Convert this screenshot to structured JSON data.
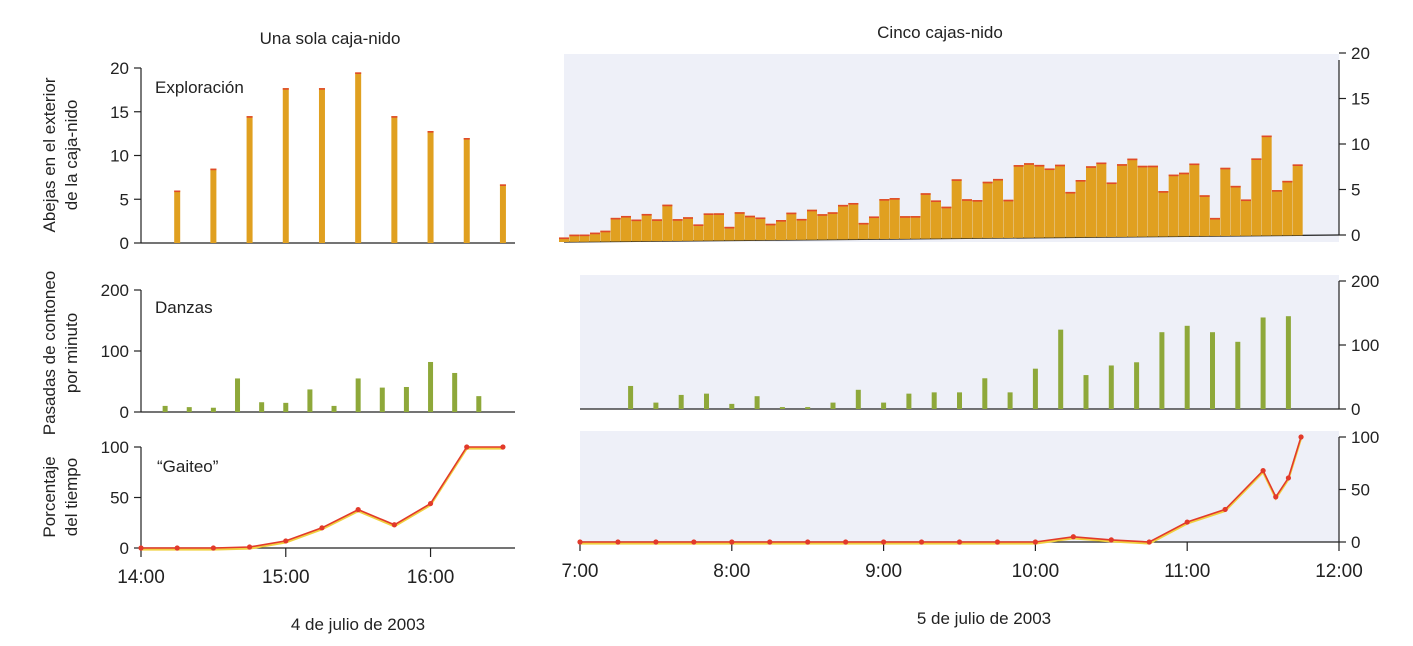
{
  "figure": {
    "left_title": "Una sola caja-nido",
    "right_title": "Cinco cajas-nido",
    "left_date": "4 de julio de 2003",
    "right_date": "5 de julio de 2003"
  },
  "colors": {
    "bars_top": "#e0a020",
    "bars_top_tip": "#e04a2a",
    "bars_mid": "#8ea83a",
    "line": "#e23a2a",
    "line_under": "#f0d040",
    "panel_bg": "#eef0f8",
    "axis": "#222222"
  },
  "chart_data": [
    {
      "id": "left_exploracion",
      "type": "bar",
      "title": "Exploración",
      "ylabel": [
        "Abejas en el exterior",
        "de la caja-nido"
      ],
      "xlabel": "",
      "xlim": [
        "14:00",
        "16:35"
      ],
      "ylim": [
        0,
        20
      ],
      "yticks": [
        "0",
        "5",
        "10",
        "15",
        "20"
      ],
      "x": [
        "14:15",
        "14:30",
        "14:45",
        "15:00",
        "15:15",
        "15:30",
        "15:45",
        "16:00",
        "16:15",
        "16:30"
      ],
      "values": [
        6,
        8.5,
        14.5,
        17.7,
        17.7,
        19.5,
        14.5,
        12.8,
        12,
        6.7
      ]
    },
    {
      "id": "left_danzas",
      "type": "bar",
      "title": "Danzas",
      "ylabel": [
        "Pasadas de contoneo",
        "por minuto"
      ],
      "xlabel": "",
      "xlim": [
        "14:00",
        "16:35"
      ],
      "ylim": [
        0,
        200
      ],
      "yticks": [
        "0",
        "100",
        "200"
      ],
      "x": [
        "14:10",
        "14:20",
        "14:30",
        "14:40",
        "14:50",
        "15:00",
        "15:10",
        "15:20",
        "15:30",
        "15:40",
        "15:50",
        "16:00",
        "16:10",
        "16:20"
      ],
      "values": [
        10,
        8,
        7,
        55,
        16,
        15,
        37,
        10,
        55,
        40,
        41,
        82,
        64,
        26
      ]
    },
    {
      "id": "left_gaiteo",
      "type": "line",
      "title": "“Gaiteo”",
      "ylabel": [
        "Porcentaje",
        "del tiempo"
      ],
      "xlabel": "4 de julio de 2003",
      "xlim": [
        "14:00",
        "16:35"
      ],
      "ylim": [
        0,
        100
      ],
      "yticks": [
        "0",
        "50",
        "100"
      ],
      "xticks": [
        "14:00",
        "15:00",
        "16:00"
      ],
      "x": [
        "14:00",
        "14:15",
        "14:30",
        "14:45",
        "15:00",
        "15:15",
        "15:30",
        "15:45",
        "16:00",
        "16:15",
        "16:30"
      ],
      "values": [
        0,
        0,
        0,
        1,
        7,
        20,
        38,
        23,
        44,
        100,
        100
      ]
    },
    {
      "id": "right_exploracion",
      "type": "bar",
      "title": "",
      "ylabel": "",
      "xlabel": "",
      "xlim": [
        "7:00",
        "12:00"
      ],
      "ylim": [
        0,
        20
      ],
      "yticks": [
        "0",
        "5",
        "10",
        "15",
        "20"
      ],
      "x": [
        "7:00",
        "7:04",
        "7:08",
        "7:12",
        "7:16",
        "7:20",
        "7:24",
        "7:28",
        "7:32",
        "7:36",
        "7:40",
        "7:44",
        "7:48",
        "7:52",
        "7:56",
        "8:00",
        "8:04",
        "8:08",
        "8:12",
        "8:16",
        "8:20",
        "8:24",
        "8:28",
        "8:32",
        "8:36",
        "8:40",
        "8:44",
        "8:48",
        "8:52",
        "8:56",
        "9:00",
        "9:04",
        "9:08",
        "9:12",
        "9:16",
        "9:20",
        "9:24",
        "9:28",
        "9:32",
        "9:36",
        "9:40",
        "9:44",
        "9:48",
        "9:52",
        "9:56",
        "10:00",
        "10:04",
        "10:08",
        "10:12",
        "10:16",
        "10:20",
        "10:24",
        "10:28",
        "10:32",
        "10:36",
        "10:40",
        "10:44",
        "10:48",
        "10:52",
        "10:56",
        "11:00",
        "11:04",
        "11:08",
        "11:12",
        "11:16",
        "11:20",
        "11:24",
        "11:28",
        "11:32",
        "11:36",
        "11:40",
        "11:44"
      ],
      "values": [
        0.5,
        0.8,
        0.8,
        1.0,
        1.2,
        2.6,
        2.8,
        2.4,
        3.0,
        2.4,
        4.0,
        2.4,
        2.6,
        1.8,
        3.0,
        3.0,
        1.5,
        3.1,
        2.7,
        2.5,
        1.8,
        2.2,
        3.0,
        2.3,
        3.3,
        2.8,
        3.0,
        3.8,
        4.0,
        1.8,
        2.5,
        4.4,
        4.5,
        2.5,
        2.5,
        5.0,
        4.2,
        3.5,
        6.5,
        4.3,
        4.2,
        6.2,
        6.5,
        4.2,
        8.0,
        8.2,
        8.0,
        7.6,
        8.0,
        5.0,
        6.3,
        7.8,
        8.2,
        6.0,
        8.0,
        8.6,
        7.8,
        7.8,
        5.0,
        6.8,
        7.0,
        8.0,
        4.5,
        2.0,
        7.5,
        5.5,
        4.0,
        8.5,
        11.0,
        5.0,
        6.0,
        7.8
      ]
    },
    {
      "id": "right_danzas",
      "type": "bar",
      "title": "",
      "ylabel": "",
      "xlabel": "",
      "xlim": [
        "7:00",
        "12:00"
      ],
      "ylim": [
        0,
        200
      ],
      "yticks": [
        "0",
        "100",
        "200"
      ],
      "x": [
        "7:20",
        "7:30",
        "7:40",
        "7:50",
        "8:00",
        "8:10",
        "8:20",
        "8:30",
        "8:40",
        "8:50",
        "9:00",
        "9:10",
        "9:20",
        "9:30",
        "9:40",
        "9:50",
        "10:00",
        "10:10",
        "10:20",
        "10:30",
        "10:40",
        "10:50",
        "11:00",
        "11:10",
        "11:20",
        "11:30",
        "11:40"
      ],
      "values": [
        36,
        10,
        22,
        24,
        8,
        20,
        3,
        3,
        10,
        30,
        10,
        24,
        26,
        26,
        48,
        26,
        63,
        124,
        53,
        68,
        73,
        120,
        130,
        120,
        105,
        143,
        145
      ]
    },
    {
      "id": "right_gaiteo",
      "type": "line",
      "title": "",
      "ylabel": "",
      "xlabel": "5 de julio de 2003",
      "xlim": [
        "7:00",
        "12:00"
      ],
      "ylim": [
        0,
        100
      ],
      "yticks": [
        "0",
        "50",
        "100"
      ],
      "xticks": [
        "7:00",
        "8:00",
        "9:00",
        "10:00",
        "11:00",
        "12:00"
      ],
      "x": [
        "7:00",
        "7:15",
        "7:30",
        "7:45",
        "8:00",
        "8:15",
        "8:30",
        "8:45",
        "9:00",
        "9:15",
        "9:30",
        "9:45",
        "10:00",
        "10:15",
        "10:30",
        "10:45",
        "11:00",
        "11:15",
        "11:30",
        "11:35",
        "11:40",
        "11:45"
      ],
      "values": [
        0,
        0,
        0,
        0,
        0,
        0,
        0,
        0,
        0,
        0,
        0,
        0,
        0,
        5,
        2,
        0,
        19,
        31,
        68,
        43,
        61,
        100
      ]
    }
  ]
}
